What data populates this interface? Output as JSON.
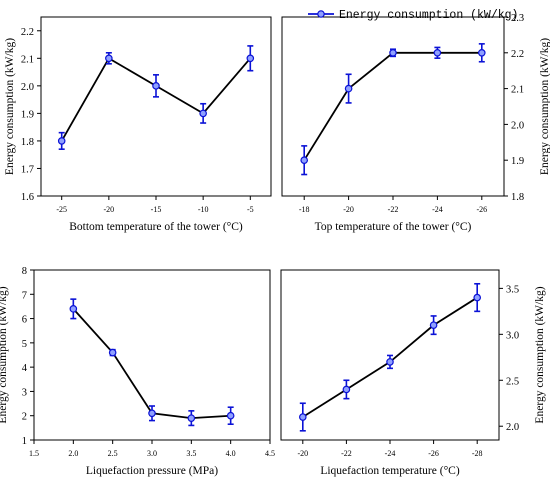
{
  "legend": {
    "label": "Energy consumption (kW/kg)"
  },
  "colors": {
    "series": "#0b12d6",
    "frame": "#000000"
  },
  "chart_data": [
    {
      "type": "line",
      "x": [
        -25,
        -20,
        -15,
        -10,
        -5
      ],
      "x_tick_labels": [
        "-25",
        "-20",
        "-15",
        "-10",
        "-5"
      ],
      "values": [
        1.8,
        2.1,
        2.0,
        1.9,
        2.1
      ],
      "errors": [
        0.03,
        0.02,
        0.04,
        0.035,
        0.045
      ],
      "xlabel": "Bottom temperature of the tower (°C)",
      "ylabel": "Energy consumption (kW/kg)",
      "ylim": [
        1.6,
        2.25
      ],
      "y_ticks": [
        1.6,
        1.7,
        1.8,
        1.9,
        2.0,
        2.1,
        2.2
      ],
      "y_tick_labels": [
        "1.6",
        "1.7",
        "1.8",
        "1.9",
        "2.0",
        "2.1",
        "2.2"
      ],
      "y_axis_side": "left",
      "grid": false
    },
    {
      "type": "line",
      "x": [
        -18,
        -20,
        -22,
        -24,
        -26
      ],
      "x_tick_labels": [
        "-18",
        "-20",
        "-22",
        "-24",
        "-26"
      ],
      "values": [
        1.9,
        2.1,
        2.2,
        2.2,
        2.2
      ],
      "errors": [
        0.04,
        0.04,
        0.01,
        0.015,
        0.025
      ],
      "xlabel": "Top temperature of the tower (°C)",
      "ylabel": "Energy consumption (kW/kg)",
      "ylim": [
        1.8,
        2.3
      ],
      "y_ticks": [
        1.8,
        1.9,
        2.0,
        2.1,
        2.2,
        2.3
      ],
      "y_tick_labels": [
        "1.8",
        "1.9",
        "2.0",
        "2.1",
        "2.2",
        "2.3"
      ],
      "y_axis_side": "right",
      "legend_position": "top-right",
      "grid": false
    },
    {
      "type": "line",
      "x": [
        2.0,
        2.5,
        3.0,
        3.5,
        4.0
      ],
      "x_tick_labels": [
        "1.5",
        "2.0",
        "2.5",
        "3.0",
        "3.5",
        "4.0",
        "4.5"
      ],
      "x_ticks": [
        1.5,
        2.0,
        2.5,
        3.0,
        3.5,
        4.0,
        4.5
      ],
      "values": [
        6.4,
        4.6,
        2.1,
        1.9,
        2.0
      ],
      "errors": [
        0.4,
        0.12,
        0.3,
        0.3,
        0.35
      ],
      "xlabel": "Liquefaction pressure (MPa)",
      "ylabel": "Energy consumption (kW/kg)",
      "xlim": [
        1.5,
        4.5
      ],
      "ylim": [
        1,
        8
      ],
      "y_ticks": [
        1,
        2,
        3,
        4,
        5,
        6,
        7,
        8
      ],
      "y_tick_labels": [
        "1",
        "2",
        "3",
        "4",
        "5",
        "6",
        "7",
        "8"
      ],
      "y_axis_side": "left",
      "grid": false
    },
    {
      "type": "line",
      "x": [
        -20,
        -22,
        -24,
        -26,
        -28
      ],
      "x_tick_labels": [
        "-20",
        "-22",
        "-24",
        "-26",
        "-28"
      ],
      "values": [
        2.1,
        2.4,
        2.7,
        3.1,
        3.4
      ],
      "errors": [
        0.15,
        0.1,
        0.07,
        0.1,
        0.15
      ],
      "xlabel": "Liquefaction temperature (°C)",
      "ylabel": "Energy consumption (kW/kg)",
      "ylim": [
        1.85,
        3.7
      ],
      "y_ticks": [
        2.0,
        2.5,
        3.0,
        3.5
      ],
      "y_tick_labels": [
        "2.0",
        "2.5",
        "3.0",
        "3.5"
      ],
      "y_axis_side": "right",
      "grid": false
    }
  ]
}
